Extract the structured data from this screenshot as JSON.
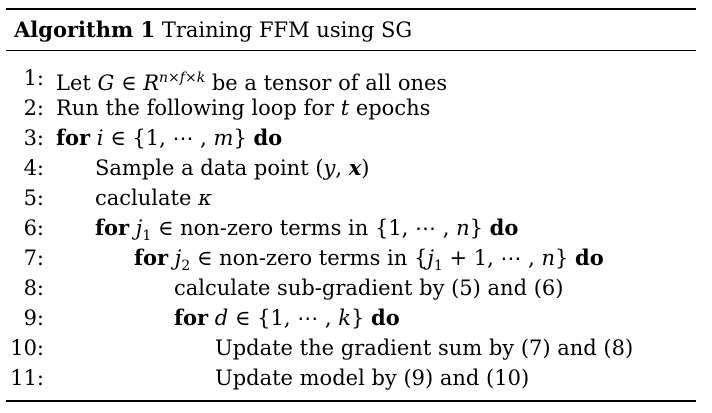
{
  "algorithm": {
    "label": "Algorithm 1",
    "title": "Training FFM using SG"
  },
  "lines": [
    {
      "num": "1:",
      "text": "Let G ∈ R^(n×f×k) be a tensor of all ones"
    },
    {
      "num": "2:",
      "text": "Run the following loop for t epochs"
    },
    {
      "num": "3:",
      "text": "for i ∈ {1, ⋯ , m} do"
    },
    {
      "num": "4:",
      "text": "Sample a data point (y, x)"
    },
    {
      "num": "5:",
      "text": "caclulate κ"
    },
    {
      "num": "6:",
      "text": "for j₁ ∈ non-zero terms in {1, ⋯ , n} do"
    },
    {
      "num": "7:",
      "text": "for j₂ ∈ non-zero terms in {j₁ + 1, ⋯ , n} do"
    },
    {
      "num": "8:",
      "text": "calculate sub-gradient by (5) and (6)"
    },
    {
      "num": "9:",
      "text": "for d ∈ {1, ⋯ , k} do"
    },
    {
      "num": "10:",
      "text": "Update the gradient sum by (7) and (8)"
    },
    {
      "num": "11:",
      "text": "Update model by (9) and (10)"
    }
  ]
}
